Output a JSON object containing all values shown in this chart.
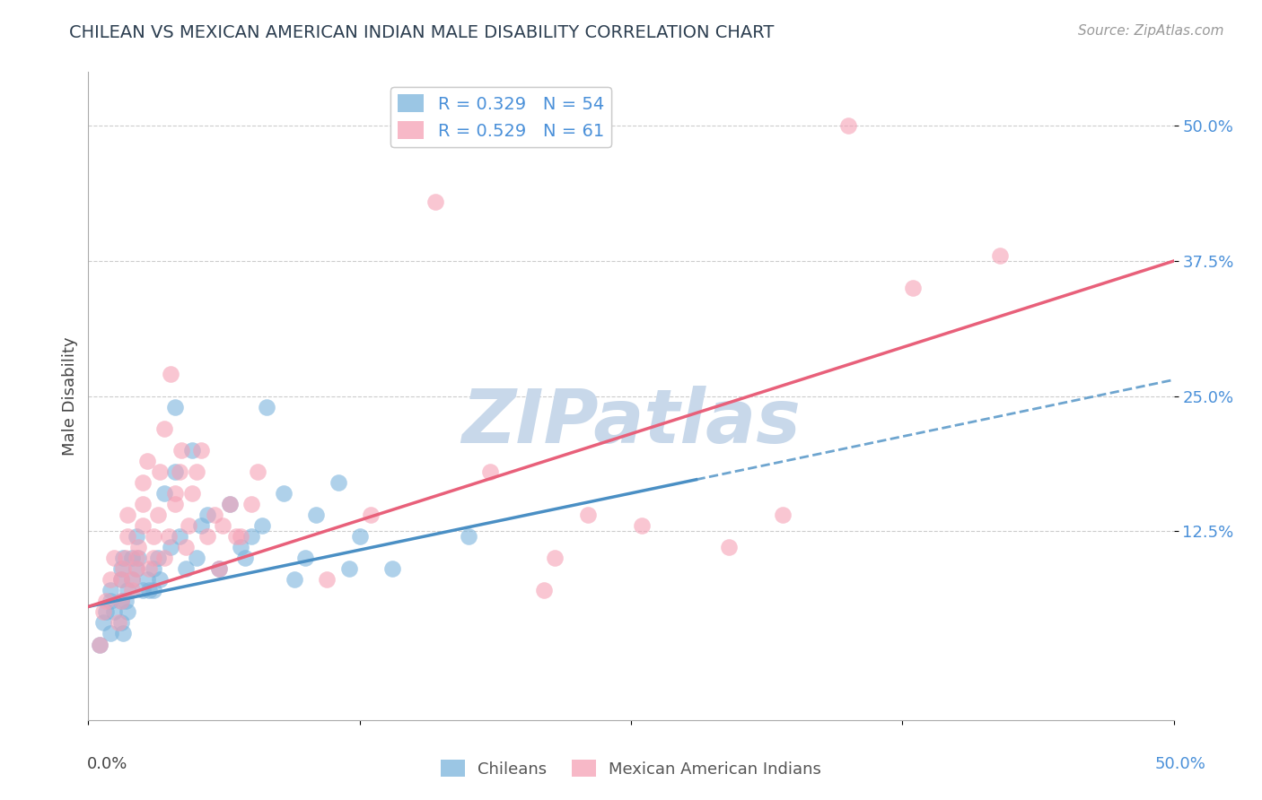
{
  "title": "CHILEAN VS MEXICAN AMERICAN INDIAN MALE DISABILITY CORRELATION CHART",
  "source": "Source: ZipAtlas.com",
  "ylabel": "Male Disability",
  "xlim": [
    0.0,
    0.5
  ],
  "ylim": [
    -0.05,
    0.55
  ],
  "yticks": [
    0.125,
    0.25,
    0.375,
    0.5
  ],
  "ytick_labels": [
    "12.5%",
    "25.0%",
    "37.5%",
    "50.0%"
  ],
  "legend_r_chilean": "R = 0.329",
  "legend_n_chilean": "N = 54",
  "legend_r_mexican": "R = 0.529",
  "legend_n_mexican": "N = 61",
  "chilean_color": "#7ab3dc",
  "mexican_color": "#f5a0b5",
  "trendline_chilean_color": "#4a8fc4",
  "trendline_mexican_color": "#e8607a",
  "watermark": "ZIPatlas",
  "watermark_color": "#c8d8ea",
  "background_color": "#ffffff",
  "chilean_points": [
    [
      0.005,
      0.02
    ],
    [
      0.007,
      0.04
    ],
    [
      0.008,
      0.05
    ],
    [
      0.01,
      0.06
    ],
    [
      0.01,
      0.03
    ],
    [
      0.01,
      0.07
    ],
    [
      0.012,
      0.05
    ],
    [
      0.015,
      0.06
    ],
    [
      0.015,
      0.08
    ],
    [
      0.015,
      0.04
    ],
    [
      0.015,
      0.09
    ],
    [
      0.016,
      0.1
    ],
    [
      0.016,
      0.03
    ],
    [
      0.017,
      0.06
    ],
    [
      0.018,
      0.07
    ],
    [
      0.018,
      0.05
    ],
    [
      0.02,
      0.08
    ],
    [
      0.02,
      0.1
    ],
    [
      0.022,
      0.12
    ],
    [
      0.022,
      0.09
    ],
    [
      0.023,
      0.1
    ],
    [
      0.025,
      0.07
    ],
    [
      0.027,
      0.08
    ],
    [
      0.028,
      0.07
    ],
    [
      0.03,
      0.09
    ],
    [
      0.03,
      0.07
    ],
    [
      0.032,
      0.1
    ],
    [
      0.033,
      0.08
    ],
    [
      0.035,
      0.16
    ],
    [
      0.038,
      0.11
    ],
    [
      0.04,
      0.18
    ],
    [
      0.04,
      0.24
    ],
    [
      0.042,
      0.12
    ],
    [
      0.045,
      0.09
    ],
    [
      0.048,
      0.2
    ],
    [
      0.05,
      0.1
    ],
    [
      0.052,
      0.13
    ],
    [
      0.055,
      0.14
    ],
    [
      0.06,
      0.09
    ],
    [
      0.065,
      0.15
    ],
    [
      0.07,
      0.11
    ],
    [
      0.072,
      0.1
    ],
    [
      0.075,
      0.12
    ],
    [
      0.08,
      0.13
    ],
    [
      0.082,
      0.24
    ],
    [
      0.09,
      0.16
    ],
    [
      0.095,
      0.08
    ],
    [
      0.1,
      0.1
    ],
    [
      0.105,
      0.14
    ],
    [
      0.115,
      0.17
    ],
    [
      0.12,
      0.09
    ],
    [
      0.125,
      0.12
    ],
    [
      0.14,
      0.09
    ],
    [
      0.175,
      0.12
    ]
  ],
  "mexican_points": [
    [
      0.005,
      0.02
    ],
    [
      0.007,
      0.05
    ],
    [
      0.008,
      0.06
    ],
    [
      0.01,
      0.08
    ],
    [
      0.012,
      0.1
    ],
    [
      0.014,
      0.04
    ],
    [
      0.015,
      0.06
    ],
    [
      0.015,
      0.08
    ],
    [
      0.016,
      0.09
    ],
    [
      0.017,
      0.1
    ],
    [
      0.018,
      0.12
    ],
    [
      0.018,
      0.14
    ],
    [
      0.02,
      0.07
    ],
    [
      0.02,
      0.08
    ],
    [
      0.022,
      0.09
    ],
    [
      0.022,
      0.1
    ],
    [
      0.023,
      0.11
    ],
    [
      0.025,
      0.13
    ],
    [
      0.025,
      0.15
    ],
    [
      0.025,
      0.17
    ],
    [
      0.027,
      0.19
    ],
    [
      0.028,
      0.09
    ],
    [
      0.03,
      0.1
    ],
    [
      0.03,
      0.12
    ],
    [
      0.032,
      0.14
    ],
    [
      0.033,
      0.18
    ],
    [
      0.035,
      0.22
    ],
    [
      0.035,
      0.1
    ],
    [
      0.037,
      0.12
    ],
    [
      0.038,
      0.27
    ],
    [
      0.04,
      0.15
    ],
    [
      0.04,
      0.16
    ],
    [
      0.042,
      0.18
    ],
    [
      0.043,
      0.2
    ],
    [
      0.045,
      0.11
    ],
    [
      0.046,
      0.13
    ],
    [
      0.048,
      0.16
    ],
    [
      0.05,
      0.18
    ],
    [
      0.052,
      0.2
    ],
    [
      0.055,
      0.12
    ],
    [
      0.058,
      0.14
    ],
    [
      0.06,
      0.09
    ],
    [
      0.062,
      0.13
    ],
    [
      0.065,
      0.15
    ],
    [
      0.068,
      0.12
    ],
    [
      0.07,
      0.12
    ],
    [
      0.075,
      0.15
    ],
    [
      0.078,
      0.18
    ],
    [
      0.11,
      0.08
    ],
    [
      0.13,
      0.14
    ],
    [
      0.16,
      0.43
    ],
    [
      0.185,
      0.18
    ],
    [
      0.21,
      0.07
    ],
    [
      0.215,
      0.1
    ],
    [
      0.23,
      0.14
    ],
    [
      0.255,
      0.13
    ],
    [
      0.295,
      0.11
    ],
    [
      0.32,
      0.14
    ],
    [
      0.35,
      0.5
    ],
    [
      0.38,
      0.35
    ],
    [
      0.42,
      0.38
    ]
  ],
  "chilean_trend": {
    "x_start": 0.0,
    "y_start": 0.055,
    "x_end": 0.5,
    "y_end": 0.265
  },
  "mexican_trend": {
    "x_start": 0.0,
    "y_start": 0.055,
    "x_end": 0.5,
    "y_end": 0.375
  }
}
